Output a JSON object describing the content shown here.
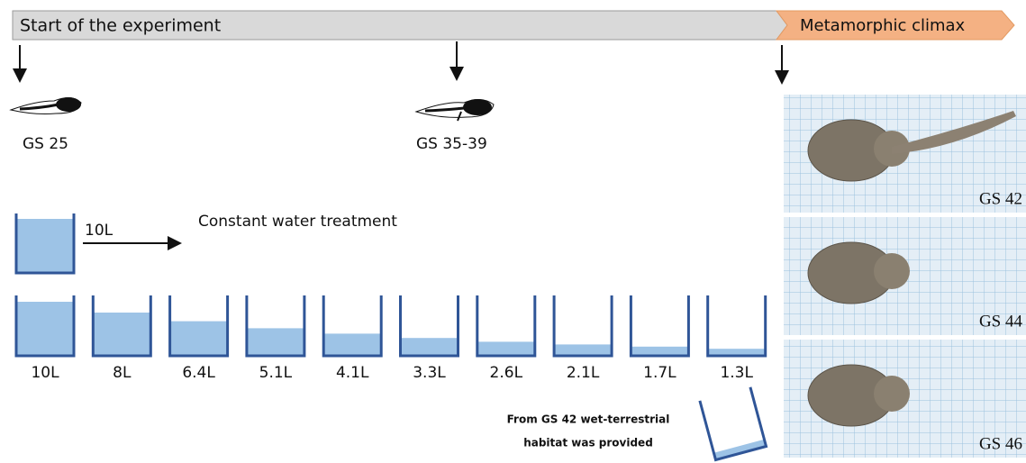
{
  "timeline": {
    "start": "Start of the experiment",
    "end": "Metamorphic climax"
  },
  "stages": [
    {
      "label": "GS 25"
    },
    {
      "label": "GS 35-39"
    }
  ],
  "constant": {
    "label": "10L",
    "volume": 10,
    "text": "Constant water treatment"
  },
  "containers": [
    {
      "label": "10L",
      "volume": 10
    },
    {
      "label": "8L",
      "volume": 8
    },
    {
      "label": "6.4L",
      "volume": 6.4
    },
    {
      "label": "5.1L",
      "volume": 5.1
    },
    {
      "label": "4.1L",
      "volume": 4.1
    },
    {
      "label": "3.3L",
      "volume": 3.3
    },
    {
      "label": "2.6L",
      "volume": 2.6
    },
    {
      "label": "2.1L",
      "volume": 2.1
    },
    {
      "label": "1.7L",
      "volume": 1.7
    },
    {
      "label": "1.3L",
      "volume": 1.3
    }
  ],
  "note": [
    "From GS 42 wet-terrestrial",
    "habitat was provided"
  ],
  "photos": [
    {
      "label": "GS 42"
    },
    {
      "label": "GS 44"
    },
    {
      "label": "GS 46"
    }
  ]
}
